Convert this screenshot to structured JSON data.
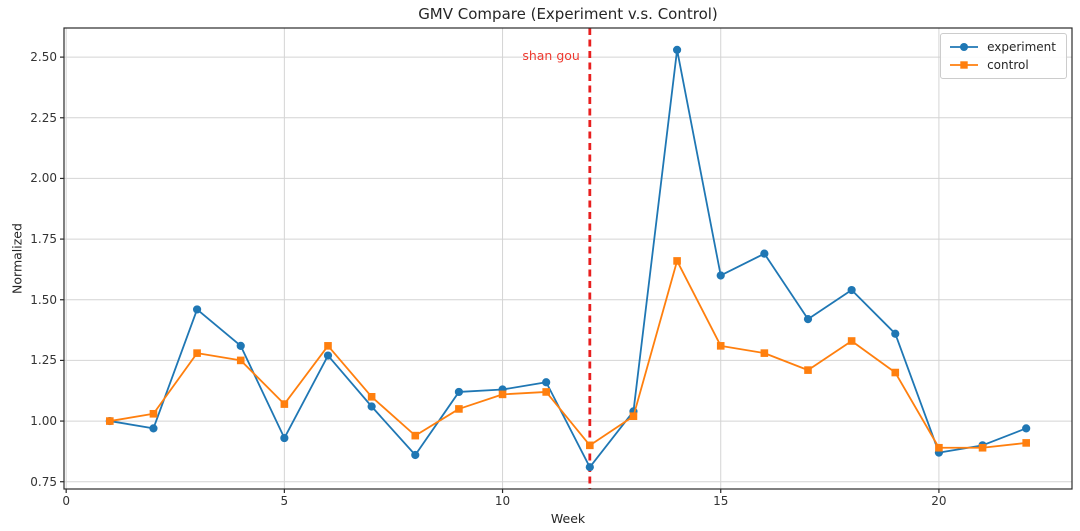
{
  "chart_data": {
    "type": "line",
    "title": "GMV Compare (Experiment v.s. Control)",
    "xlabel": "Week",
    "ylabel": "Normalized",
    "x": [
      1,
      2,
      3,
      4,
      5,
      6,
      7,
      8,
      9,
      10,
      11,
      12,
      13,
      14,
      15,
      16,
      17,
      18,
      19,
      20,
      21,
      22
    ],
    "series": [
      {
        "name": "experiment",
        "color": "#1f77b4",
        "marker": "circle",
        "values": [
          1.0,
          0.97,
          1.46,
          1.31,
          0.93,
          1.27,
          1.06,
          0.86,
          1.12,
          1.13,
          1.16,
          0.81,
          1.04,
          2.53,
          1.6,
          1.69,
          1.42,
          1.54,
          1.36,
          0.87,
          0.9,
          0.97
        ]
      },
      {
        "name": "control",
        "color": "#ff7f0e",
        "marker": "square",
        "values": [
          1.0,
          1.03,
          1.28,
          1.25,
          1.07,
          1.31,
          1.1,
          0.94,
          1.05,
          1.11,
          1.12,
          0.9,
          1.02,
          1.66,
          1.31,
          1.28,
          1.21,
          1.33,
          1.2,
          0.89,
          0.89,
          0.91
        ]
      }
    ],
    "vline": {
      "x": 12,
      "color": "#e81f1f",
      "style": "dashed"
    },
    "annotation": {
      "text": "shan gou",
      "color": "#ee3a30",
      "x": 12
    },
    "xticks": {
      "values": [
        0,
        5,
        10,
        15,
        20
      ],
      "labels": [
        "0",
        "5",
        "10",
        "15",
        "20"
      ]
    },
    "yticks": {
      "values": [
        0.75,
        1.0,
        1.25,
        1.5,
        1.75,
        2.0,
        2.25,
        2.5
      ],
      "labels": [
        "0.75",
        "1.00",
        "1.25",
        "1.50",
        "1.75",
        "2.00",
        "2.25",
        "2.50"
      ]
    },
    "xlim": [
      -0.05,
      23.05
    ],
    "ylim": [
      0.72,
      2.62
    ],
    "grid": true,
    "grid_color": "#d4d4d4",
    "spine_color": "#2b2b2b",
    "legend_position": "upper right"
  }
}
